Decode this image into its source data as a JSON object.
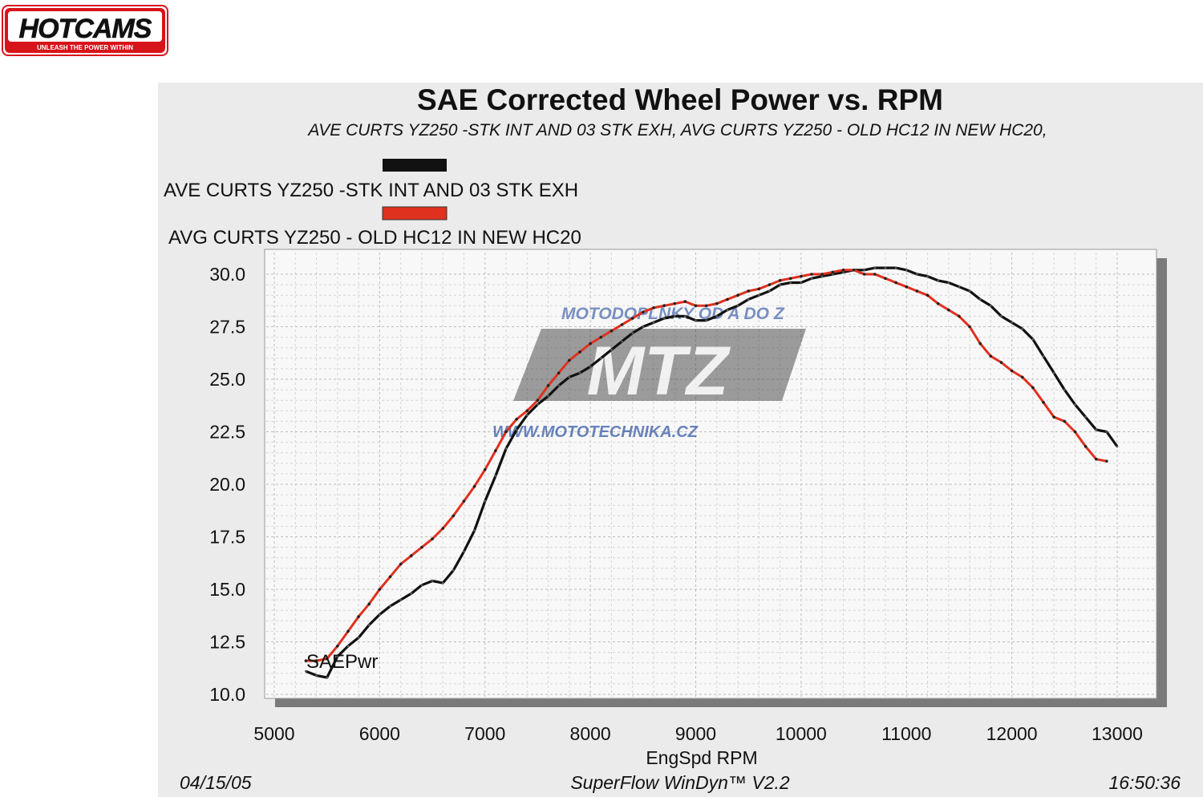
{
  "brand": {
    "name": "HOTCAMS",
    "tagline": "UNLEASH THE POWER WITHIN",
    "accent_color": "#d7141a"
  },
  "watermark": {
    "top_text": "MOTODOPLŇKY OD A DO Z",
    "logo_text": "MTZ",
    "url": "WWW.MOTOTECHNIKA.CZ",
    "color": "#3b5ea8"
  },
  "footer": {
    "date": "04/15/05",
    "software": "SuperFlow WinDyn™ V2.2",
    "time": "16:50:36"
  },
  "chart_data": {
    "type": "line",
    "title": "SAE Corrected Wheel Power vs. RPM",
    "subtitle": "AVE CURTS YZ250 -STK INT AND 03 STK EXH, AVG CURTS YZ250 - OLD HC12 IN NEW HC20,",
    "xlabel": "EngSpd  RPM",
    "ylabel": "",
    "series_label": "SAEPwr",
    "xlim": [
      5000,
      13000
    ],
    "ylim": [
      10,
      30
    ],
    "x_ticks": [
      "5000",
      "6000",
      "7000",
      "8000",
      "9000",
      "10000",
      "11000",
      "12000",
      "13000"
    ],
    "y_ticks": [
      "10.0",
      "12.5",
      "15.0",
      "17.5",
      "20.0",
      "22.5",
      "25.0",
      "27.5",
      "30.0"
    ],
    "grid": true,
    "legend_position": "top-left",
    "series": [
      {
        "name": "AVE CURTS YZ250 -STK INT AND 03 STK EXH",
        "color": "#111111",
        "x": [
          5300,
          5400,
          5500,
          5600,
          5700,
          5800,
          5900,
          6000,
          6100,
          6200,
          6300,
          6400,
          6500,
          6600,
          6700,
          6800,
          6900,
          7000,
          7100,
          7200,
          7300,
          7400,
          7500,
          7600,
          7700,
          7800,
          7900,
          8000,
          8100,
          8200,
          8300,
          8400,
          8500,
          8600,
          8700,
          8800,
          8900,
          9000,
          9100,
          9200,
          9300,
          9400,
          9500,
          9600,
          9700,
          9800,
          9900,
          10000,
          10100,
          10200,
          10300,
          10400,
          10500,
          10600,
          10700,
          10800,
          10900,
          11000,
          11100,
          11200,
          11300,
          11400,
          11500,
          11600,
          11700,
          11800,
          11900,
          12000,
          12100,
          12200,
          12300,
          12400,
          12500,
          12600,
          12700,
          12800,
          12900,
          13000
        ],
        "y": [
          11.1,
          10.9,
          10.8,
          11.8,
          12.3,
          12.7,
          13.3,
          13.8,
          14.2,
          14.5,
          14.8,
          15.2,
          15.4,
          15.3,
          15.9,
          16.8,
          17.8,
          19.2,
          20.4,
          21.7,
          22.6,
          23.3,
          23.8,
          24.2,
          24.7,
          25.1,
          25.3,
          25.6,
          26.0,
          26.4,
          26.8,
          27.2,
          27.5,
          27.7,
          27.9,
          28.0,
          28.0,
          27.8,
          27.8,
          28.0,
          28.3,
          28.5,
          28.8,
          29.0,
          29.2,
          29.5,
          29.6,
          29.6,
          29.8,
          29.9,
          30.0,
          30.1,
          30.2,
          30.2,
          30.3,
          30.3,
          30.3,
          30.2,
          30.0,
          29.9,
          29.7,
          29.6,
          29.4,
          29.2,
          28.8,
          28.5,
          28.0,
          27.7,
          27.4,
          26.9,
          26.1,
          25.3,
          24.5,
          23.8,
          23.2,
          22.6,
          22.5,
          21.8
        ]
      },
      {
        "name": "AVG CURTS YZ250 - OLD HC12 IN NEW HC20",
        "color": "#e0301e",
        "x": [
          5300,
          5400,
          5500,
          5600,
          5700,
          5800,
          5900,
          6000,
          6100,
          6200,
          6300,
          6400,
          6500,
          6600,
          6700,
          6800,
          6900,
          7000,
          7100,
          7200,
          7300,
          7400,
          7500,
          7600,
          7700,
          7800,
          7900,
          8000,
          8100,
          8200,
          8300,
          8400,
          8500,
          8600,
          8700,
          8800,
          8900,
          9000,
          9100,
          9200,
          9300,
          9400,
          9500,
          9600,
          9700,
          9800,
          9900,
          10000,
          10100,
          10200,
          10300,
          10400,
          10500,
          10600,
          10700,
          10800,
          10900,
          11000,
          11100,
          11200,
          11300,
          11400,
          11500,
          11600,
          11700,
          11800,
          11900,
          12000,
          12100,
          12200,
          12300,
          12400,
          12500,
          12600,
          12700,
          12800,
          12900
        ],
        "y": [
          11.6,
          11.6,
          11.7,
          12.3,
          13.0,
          13.7,
          14.3,
          15.0,
          15.6,
          16.2,
          16.6,
          17.0,
          17.4,
          17.9,
          18.5,
          19.2,
          19.9,
          20.7,
          21.6,
          22.5,
          23.1,
          23.5,
          24.0,
          24.7,
          25.3,
          25.9,
          26.3,
          26.7,
          27.0,
          27.3,
          27.6,
          27.9,
          28.2,
          28.4,
          28.5,
          28.6,
          28.7,
          28.5,
          28.5,
          28.6,
          28.8,
          29.0,
          29.2,
          29.3,
          29.5,
          29.7,
          29.8,
          29.9,
          30.0,
          30.0,
          30.1,
          30.2,
          30.2,
          30.0,
          30.0,
          29.8,
          29.6,
          29.4,
          29.2,
          29.0,
          28.6,
          28.3,
          28.0,
          27.5,
          26.7,
          26.1,
          25.8,
          25.4,
          25.1,
          24.6,
          23.9,
          23.2,
          23.0,
          22.5,
          21.8,
          21.2,
          21.1
        ]
      }
    ]
  }
}
